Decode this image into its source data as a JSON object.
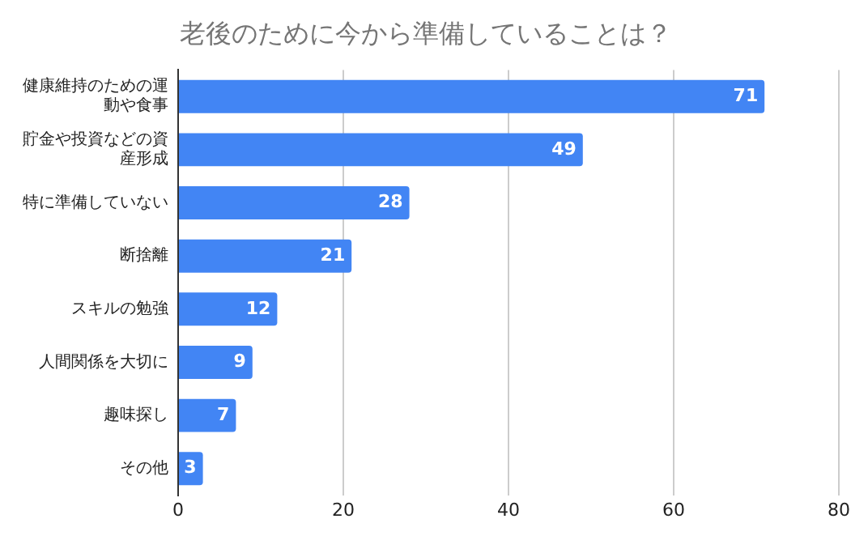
{
  "chart_data": {
    "type": "bar",
    "orientation": "horizontal",
    "title": "老後のために今から準備していることは？",
    "categories": [
      "健康維持のための運動や食事",
      "貯金や投資などの資産形成",
      "特に準備していない",
      "断捨離",
      "スキルの勉強",
      "人間関係を大切に",
      "趣味探し",
      "その他"
    ],
    "values": [
      71,
      49,
      28,
      21,
      12,
      9,
      7,
      3
    ],
    "color": "#4285f4",
    "xlim": [
      0,
      80
    ],
    "xticks": [
      0,
      20,
      40,
      60,
      80
    ],
    "grid": "x",
    "data_labels": true
  }
}
